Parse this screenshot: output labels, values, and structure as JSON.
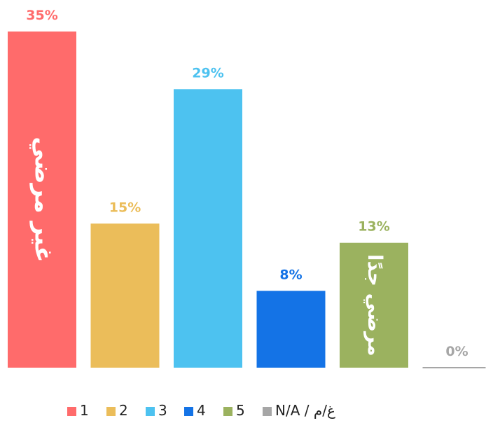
{
  "chart_data": {
    "type": "bar",
    "categories": [
      "1",
      "2",
      "3",
      "4",
      "5",
      "N/A / غ/م"
    ],
    "values": [
      35,
      15,
      29,
      8,
      13,
      0
    ],
    "value_labels": [
      "35%",
      "15%",
      "29%",
      "8%",
      "13%",
      "0%"
    ],
    "colors": [
      "#ff6b6b",
      "#ebbd5a",
      "#4dc2f0",
      "#1473e6",
      "#9bb25f",
      "#a6a6a6"
    ],
    "in_bar_labels": [
      {
        "index": 0,
        "text": "غير مرضي"
      },
      {
        "index": 4,
        "text": "مرضي جدًا"
      }
    ],
    "legend_position": "bottom",
    "ylim": [
      0,
      35
    ],
    "grid": false
  }
}
